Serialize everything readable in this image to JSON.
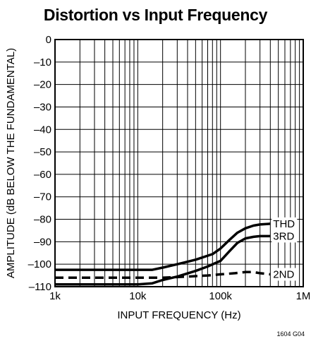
{
  "chart_data": {
    "type": "line",
    "title": "Distortion vs Input Frequency",
    "xlabel": "INPUT FREQUENCY (Hz)",
    "ylabel": "AMPLITUDE (dB BELOW THE FUNDAMENTAL)",
    "x_scale": "log",
    "xlim": [
      1000,
      1000000
    ],
    "ylim": [
      -110,
      0
    ],
    "x_ticks": [
      {
        "value": 1000,
        "label": "1k"
      },
      {
        "value": 10000,
        "label": "10k"
      },
      {
        "value": 100000,
        "label": "100k"
      },
      {
        "value": 1000000,
        "label": "1M"
      }
    ],
    "y_ticks": [
      {
        "value": 0,
        "label": "0"
      },
      {
        "value": -10,
        "label": "–10"
      },
      {
        "value": -20,
        "label": "–20"
      },
      {
        "value": -30,
        "label": "–30"
      },
      {
        "value": -40,
        "label": "–40"
      },
      {
        "value": -50,
        "label": "–50"
      },
      {
        "value": -60,
        "label": "–60"
      },
      {
        "value": -70,
        "label": "–70"
      },
      {
        "value": -80,
        "label": "–80"
      },
      {
        "value": -90,
        "label": "–90"
      },
      {
        "value": -100,
        "label": "–100"
      },
      {
        "value": -110,
        "label": "–110"
      }
    ],
    "grid": true,
    "series": [
      {
        "name": "THD",
        "style": "solid",
        "x": [
          1000,
          5000,
          10000,
          15000,
          20000,
          30000,
          50000,
          80000,
          100000,
          130000,
          160000,
          200000,
          250000,
          300000,
          400000
        ],
        "y": [
          -102.5,
          -102.5,
          -102.5,
          -102.5,
          -101.5,
          -100,
          -98,
          -95.5,
          -93,
          -89,
          -86,
          -84,
          -82.8,
          -82.3,
          -82
        ]
      },
      {
        "name": "3RD",
        "style": "solid",
        "x": [
          1000,
          10000,
          15000,
          20000,
          30000,
          50000,
          70000,
          100000,
          130000,
          160000,
          200000,
          250000,
          300000,
          400000
        ],
        "y": [
          -109,
          -109,
          -108.5,
          -107,
          -105.5,
          -103,
          -101,
          -98.5,
          -94,
          -90.5,
          -88.5,
          -87.8,
          -87.5,
          -87.5
        ]
      },
      {
        "name": "2ND",
        "style": "dashed",
        "x": [
          1000,
          10000,
          20000,
          40000,
          70000,
          100000,
          150000,
          200000,
          250000,
          300000,
          400000
        ],
        "y": [
          -106,
          -106,
          -106,
          -105.5,
          -105,
          -104.5,
          -104,
          -103.5,
          -103.5,
          -104,
          -104.5
        ]
      }
    ]
  },
  "footnote": "1604 G04"
}
